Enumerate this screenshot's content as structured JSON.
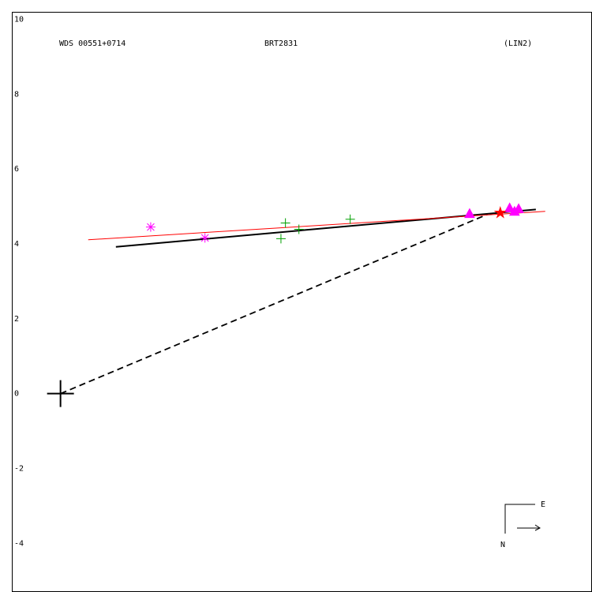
{
  "chart_data": {
    "type": "scatter",
    "title": "WDS 00551+0714",
    "subtitle": "BRT2831",
    "annotation": "(LIN2)",
    "compass": {
      "east": "E",
      "north": "N"
    },
    "xlim": [
      -1.3,
      14.2
    ],
    "ylim": [
      -5.3,
      10.2
    ],
    "yticks": [
      10,
      8,
      6,
      4,
      2,
      0,
      -2,
      -4
    ],
    "grid": false,
    "series": [
      {
        "style": "dashed",
        "color": "#000000",
        "x": [
          0,
          11.41
        ],
        "values": [
          0,
          4.79
        ]
      },
      {
        "style": "solid",
        "color": "#000000",
        "x": [
          1.48,
          12.7
        ],
        "values": [
          3.92,
          4.92
        ]
      },
      {
        "style": "thin",
        "color": "#ff0000",
        "x": [
          0.74,
          12.95
        ],
        "values": [
          4.11,
          4.87
        ]
      },
      {
        "marker": "big-cross",
        "color": "#000000",
        "x": [
          0
        ],
        "values": [
          0
        ]
      },
      {
        "marker": "asterisk",
        "color": "#ff00ff",
        "x": [
          2.41,
          3.86
        ],
        "values": [
          4.45,
          4.16
        ]
      },
      {
        "marker": "plus",
        "color": "#00a000",
        "x": [
          5.89,
          6.01,
          6.37,
          7.74
        ],
        "values": [
          4.14,
          4.56,
          4.39,
          4.66
        ]
      },
      {
        "marker": "triangle",
        "color": "#ff00ff",
        "x": [
          10.93,
          12.0,
          12.13,
          12.24
        ],
        "values": [
          4.81,
          4.96,
          4.87,
          4.94
        ]
      },
      {
        "marker": "star",
        "color": "#ff0000",
        "x": [
          11.75
        ],
        "values": [
          4.83
        ]
      }
    ]
  }
}
